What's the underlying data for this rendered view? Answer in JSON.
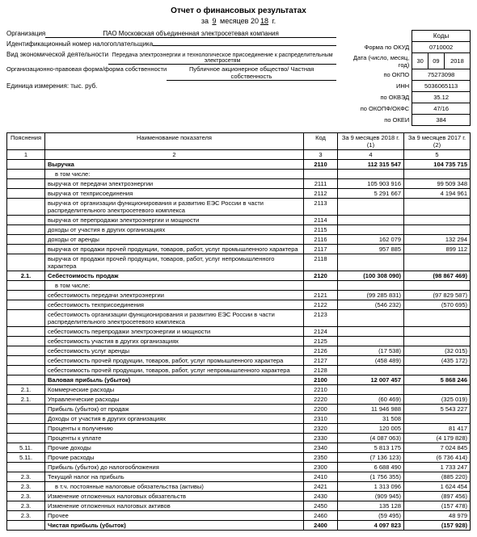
{
  "header": {
    "title": "Отчет о финансовых результатах",
    "period_prefix": "за",
    "period_months": "9",
    "period_months_label": "месяцев",
    "period_year_prefix": "20",
    "period_year": "18",
    "period_suffix": "г."
  },
  "org": {
    "org_label": "Организация",
    "org_value": "ПАО Московская объединенная электросетевая компания",
    "inn_label": "Идентификационный номер налогоплательщика",
    "activity_label": "Вид экономической деятельности",
    "activity_value": "Передача электроэнергии и технологическое присоединение к распределительным электросетям",
    "form_label": "Организационно-правовая форма/форма собственности",
    "form_value": "Публичное акционерное общество/ Частная собственность",
    "unit_label": "Единица измерения: тыс. руб."
  },
  "codes": {
    "header": "Коды",
    "okud_label": "Форма по ОКУД",
    "okud": "0710002",
    "date_label": "Дата (число, месяц, год)",
    "date_d": "30",
    "date_m": "09",
    "date_y": "2018",
    "okpo_label": "по ОКПО",
    "okpo": "75273098",
    "inn_label": "ИНН",
    "inn": "5036065113",
    "okved_label": "по ОКВЭД",
    "okved": "35.12",
    "okopf_label": "по ОКОПФ/ОКФС",
    "okopf": "47/16",
    "okei_label": "по ОКЕИ",
    "okei": "384"
  },
  "thead": {
    "c1": "Пояснения",
    "c2": "Наименование показателя",
    "c3": "Код",
    "c4": "За 9 месяцев 2018 г. (1)",
    "c5": "За 9 месяцев 2017 г. (2)",
    "n1": "1",
    "n2": "2",
    "n3": "3",
    "n4": "4",
    "n5": "5"
  },
  "rows": [
    {
      "p": "",
      "n": "Выручка",
      "c": "2110",
      "v1": "112 315 547",
      "v2": "104 735 715",
      "bold": true
    },
    {
      "p": "",
      "n": "в том числе:",
      "c": "",
      "v1": "",
      "v2": ""
    },
    {
      "p": "",
      "n": "выручка от передачи электроэнергии",
      "c": "2111",
      "v1": "105 903 916",
      "v2": "99 509 348"
    },
    {
      "p": "",
      "n": "выручка от техприсоединения",
      "c": "2112",
      "v1": "5 291 667",
      "v2": "4 194 961"
    },
    {
      "p": "",
      "n": "выручка от организации функционирования и развитию ЕЭС России в части распределительного электросетевого комплекса",
      "c": "2113",
      "v1": "",
      "v2": ""
    },
    {
      "p": "",
      "n": "выручка от перепродажи электроэнергии и мощности",
      "c": "2114",
      "v1": "",
      "v2": ""
    },
    {
      "p": "",
      "n": "доходы от участия в других организациях",
      "c": "2115",
      "v1": "",
      "v2": ""
    },
    {
      "p": "",
      "n": "доходы от аренды",
      "c": "2116",
      "v1": "162 079",
      "v2": "132 294"
    },
    {
      "p": "",
      "n": "выручка от продажи прочей продукции, товаров, работ, услуг промышленного характера",
      "c": "2117",
      "v1": "957 885",
      "v2": "899 112"
    },
    {
      "p": "",
      "n": "выручка от продажи прочей продукции, товаров, работ, услуг непромышленного характера",
      "c": "2118",
      "v1": "",
      "v2": ""
    },
    {
      "p": "2.1.",
      "n": "Себестоимость продаж",
      "c": "2120",
      "v1": "(100 308 090)",
      "v2": "(98 867 469)",
      "bold": true
    },
    {
      "p": "",
      "n": "в том числе:",
      "c": "",
      "v1": "",
      "v2": ""
    },
    {
      "p": "",
      "n": "себестоимость передачи электроэнергии",
      "c": "2121",
      "v1": "(99 285 831)",
      "v2": "(97 829 587)"
    },
    {
      "p": "",
      "n": "себестоимость техприсоединения",
      "c": "2122",
      "v1": "(546 232)",
      "v2": "(570 695)"
    },
    {
      "p": "",
      "n": "себестоимость организации функционирования и развитию ЕЭС России в части распределительного электросетевого комплекса",
      "c": "2123",
      "v1": "",
      "v2": ""
    },
    {
      "p": "",
      "n": "себестоимость перепродажи электроэнергии и мощности",
      "c": "2124",
      "v1": "",
      "v2": ""
    },
    {
      "p": "",
      "n": "себестоимость участия в других организациях",
      "c": "2125",
      "v1": "",
      "v2": ""
    },
    {
      "p": "",
      "n": "себестоимость услуг аренды",
      "c": "2126",
      "v1": "(17 538)",
      "v2": "(32 015)"
    },
    {
      "p": "",
      "n": "себестоимость прочей продукции, товаров, работ, услуг промышленного характера",
      "c": "2127",
      "v1": "(458 489)",
      "v2": "(435 172)"
    },
    {
      "p": "",
      "n": "себестоимость прочей продукции, товаров, работ, услуг непромышленного характера",
      "c": "2128",
      "v1": "",
      "v2": ""
    },
    {
      "p": "",
      "n": "Валовая прибыль (убыток)",
      "c": "2100",
      "v1": "12 007 457",
      "v2": "5 868 246",
      "bold": true
    },
    {
      "p": "2.1.",
      "n": "Коммерческие расходы",
      "c": "2210",
      "v1": "",
      "v2": ""
    },
    {
      "p": "2.1.",
      "n": "Управленческие расходы",
      "c": "2220",
      "v1": "(60 469)",
      "v2": "(325 019)"
    },
    {
      "p": "",
      "n": "Прибыль (убыток) от продаж",
      "c": "2200",
      "v1": "11 946 988",
      "v2": "5 543 227"
    },
    {
      "p": "",
      "n": "Доходы от участия в других организациях",
      "c": "2310",
      "v1": "31 508",
      "v2": ""
    },
    {
      "p": "",
      "n": "Проценты к получению",
      "c": "2320",
      "v1": "120 005",
      "v2": "81 417"
    },
    {
      "p": "",
      "n": "Проценты к уплате",
      "c": "2330",
      "v1": "(4 087 063)",
      "v2": "(4 179 828)"
    },
    {
      "p": "5.11.",
      "n": "Прочие доходы",
      "c": "2340",
      "v1": "5 813 175",
      "v2": "7 024 845"
    },
    {
      "p": "5.11.",
      "n": "Прочие расходы",
      "c": "2350",
      "v1": "(7 136 123)",
      "v2": "(6 736 414)"
    },
    {
      "p": "",
      "n": "Прибыль (убыток) до налогообложения",
      "c": "2300",
      "v1": "6 688 490",
      "v2": "1 733 247"
    },
    {
      "p": "2.3.",
      "n": "Текущий налог на прибыль",
      "c": "2410",
      "v1": "(1 756 355)",
      "v2": "(885 220)"
    },
    {
      "p": "2.3.",
      "n": "в т.ч. постоянные налоговые обязательства (активы)",
      "c": "2421",
      "v1": "1 313 096",
      "v2": "1 624 454"
    },
    {
      "p": "2.3.",
      "n": "Изменение отложенных налоговых обязательств",
      "c": "2430",
      "v1": "(909 945)",
      "v2": "(897 456)"
    },
    {
      "p": "2.3.",
      "n": "Изменение отложенных налоговых активов",
      "c": "2450",
      "v1": "135 128",
      "v2": "(157 478)"
    },
    {
      "p": "2.3.",
      "n": "Прочее",
      "c": "2460",
      "v1": "(59 495)",
      "v2": "48 979"
    },
    {
      "p": "",
      "n": "Чистая прибыль (убыток)",
      "c": "2400",
      "v1": "4 097 823",
      "v2": "(157 928)",
      "bold": true
    }
  ]
}
